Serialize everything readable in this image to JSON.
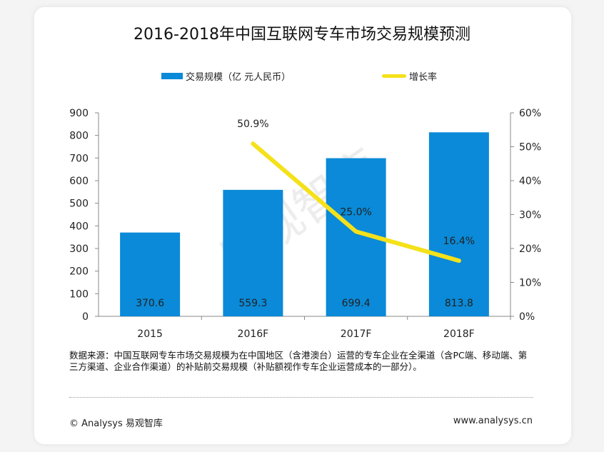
{
  "chart_data": {
    "type": "bar+line",
    "title": "2016-2018年中国互联网专车市场交易规模预测",
    "categories": [
      "2015",
      "2016F",
      "2017F",
      "2018F"
    ],
    "series": [
      {
        "name": "交易规模（亿 元人民币）",
        "type": "bar",
        "axis": "left",
        "color": "#0a8ad8",
        "values": [
          370.6,
          559.3,
          699.4,
          813.8
        ],
        "labels": [
          "370.6",
          "559.3",
          "699.4",
          "813.8"
        ]
      },
      {
        "name": "增长率",
        "type": "line",
        "axis": "right",
        "color": "#f5e11a",
        "values": [
          null,
          50.9,
          25.0,
          16.4
        ],
        "labels": [
          "",
          "50.9%",
          "25.0%",
          "16.4%"
        ]
      }
    ],
    "left_axis": {
      "ylim": [
        0,
        900
      ],
      "ticks": [
        "0",
        "100",
        "200",
        "300",
        "400",
        "500",
        "600",
        "700",
        "800",
        "900"
      ]
    },
    "right_axis": {
      "ylim": [
        0,
        60
      ],
      "ticks": [
        "0%",
        "10%",
        "20%",
        "30%",
        "40%",
        "50%",
        "60%"
      ]
    },
    "legend_placement": "top",
    "grid": false
  },
  "watermark": "易观智库",
  "note": "数据来源：中国互联网专车市场交易规模为在中国地区（含港澳台）运营的专车企业在全渠道（含PC端、移动端、第三方渠道、企业合作渠道）的补贴前交易规模（补贴额视作专车企业运营成本的一部分）。",
  "footer": {
    "copyright": "© Analysys 易观智库",
    "website": "www.analysys.cn"
  }
}
